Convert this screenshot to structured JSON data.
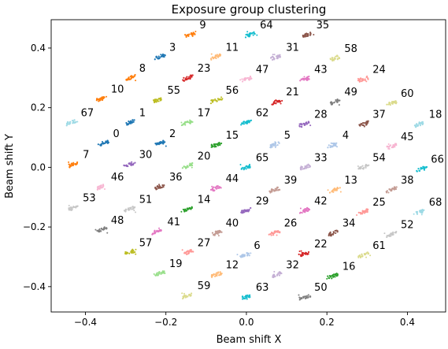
{
  "chart_data": {
    "type": "scatter",
    "title": "Exposure group clustering",
    "xlabel": "Beam shift X",
    "ylabel": "Beam shift Y",
    "xlim": [
      -0.485,
      0.495
    ],
    "ylim": [
      -0.485,
      0.495
    ],
    "xticks": [
      -0.4,
      -0.2,
      0.0,
      0.2,
      0.4
    ],
    "yticks": [
      -0.4,
      -0.2,
      0.0,
      0.2,
      0.4
    ],
    "grid": false,
    "legend": "none",
    "palette": [
      "#1f77b4",
      "#aec7e8",
      "#ff7f0e",
      "#ffbb78",
      "#2ca02c",
      "#98df8a",
      "#d62728",
      "#ff9896",
      "#9467bd",
      "#c5b0d5",
      "#8c564b",
      "#c49c94",
      "#e377c2",
      "#f7b6d2",
      "#7f7f7f",
      "#c7c7c7",
      "#bcbd22",
      "#dbdb8d",
      "#17becf",
      "#9edae5"
    ],
    "clusters": [
      {
        "label": "0",
        "x": -0.355,
        "y": 0.08,
        "color": "#1f77b4"
      },
      {
        "label": "1",
        "x": -0.29,
        "y": 0.15,
        "color": "#1f77b4"
      },
      {
        "label": "2",
        "x": -0.215,
        "y": 0.08,
        "color": "#1f77b4"
      },
      {
        "label": "3",
        "x": -0.215,
        "y": 0.37,
        "color": "#1f77b4"
      },
      {
        "label": "4",
        "x": 0.215,
        "y": 0.075,
        "color": "#aec7e8"
      },
      {
        "label": "5",
        "x": 0.07,
        "y": 0.075,
        "color": "#aec7e8"
      },
      {
        "label": "6",
        "x": -0.005,
        "y": -0.295,
        "color": "#aec7e8"
      },
      {
        "label": "7",
        "x": -0.43,
        "y": 0.01,
        "color": "#ff7f0e"
      },
      {
        "label": "8",
        "x": -0.29,
        "y": 0.3,
        "color": "#ff7f0e"
      },
      {
        "label": "9",
        "x": -0.14,
        "y": 0.445,
        "color": "#ff7f0e"
      },
      {
        "label": "10",
        "x": -0.36,
        "y": 0.23,
        "color": "#ff7f0e"
      },
      {
        "label": "11",
        "x": -0.075,
        "y": 0.37,
        "color": "#ffbb78"
      },
      {
        "label": "12",
        "x": -0.075,
        "y": -0.36,
        "color": "#ffbb78"
      },
      {
        "label": "13",
        "x": 0.22,
        "y": -0.075,
        "color": "#ffbb78"
      },
      {
        "label": "14",
        "x": -0.145,
        "y": -0.14,
        "color": "#2ca02c"
      },
      {
        "label": "15",
        "x": -0.075,
        "y": 0.075,
        "color": "#2ca02c"
      },
      {
        "label": "16",
        "x": 0.215,
        "y": -0.365,
        "color": "#2ca02c"
      },
      {
        "label": "17",
        "x": -0.145,
        "y": 0.15,
        "color": "#98df8a"
      },
      {
        "label": "19",
        "x": -0.215,
        "y": -0.355,
        "color": "#98df8a"
      },
      {
        "label": "20",
        "x": -0.145,
        "y": 0.005,
        "color": "#98df8a"
      },
      {
        "label": "21",
        "x": 0.075,
        "y": 0.22,
        "color": "#d62728"
      },
      {
        "label": "22",
        "x": 0.145,
        "y": -0.29,
        "color": "#d62728"
      },
      {
        "label": "23",
        "x": -0.145,
        "y": 0.3,
        "color": "#d62728"
      },
      {
        "label": "24",
        "x": 0.29,
        "y": 0.295,
        "color": "#ff9896"
      },
      {
        "label": "25",
        "x": 0.29,
        "y": -0.15,
        "color": "#ff9896"
      },
      {
        "label": "26",
        "x": 0.07,
        "y": -0.22,
        "color": "#ff9896"
      },
      {
        "label": "27",
        "x": -0.145,
        "y": -0.285,
        "color": "#ff9896"
      },
      {
        "label": "28",
        "x": 0.145,
        "y": 0.145,
        "color": "#9467bd"
      },
      {
        "label": "29",
        "x": 0.0,
        "y": -0.145,
        "color": "#9467bd"
      },
      {
        "label": "30",
        "x": -0.29,
        "y": 0.01,
        "color": "#9467bd"
      },
      {
        "label": "31",
        "x": 0.075,
        "y": 0.37,
        "color": "#c5b0d5"
      },
      {
        "label": "32",
        "x": 0.075,
        "y": -0.36,
        "color": "#c5b0d5"
      },
      {
        "label": "33",
        "x": 0.145,
        "y": 0.0,
        "color": "#c5b0d5"
      },
      {
        "label": "34",
        "x": 0.215,
        "y": -0.22,
        "color": "#8c564b"
      },
      {
        "label": "35",
        "x": 0.15,
        "y": 0.445,
        "color": "#8c564b"
      },
      {
        "label": "36",
        "x": -0.215,
        "y": -0.065,
        "color": "#8c564b"
      },
      {
        "label": "37",
        "x": 0.29,
        "y": 0.145,
        "color": "#8c564b"
      },
      {
        "label": "38",
        "x": 0.36,
        "y": -0.075,
        "color": "#c49c94"
      },
      {
        "label": "39",
        "x": 0.07,
        "y": -0.075,
        "color": "#c49c94"
      },
      {
        "label": "40",
        "x": -0.075,
        "y": -0.22,
        "color": "#c49c94"
      },
      {
        "label": "41",
        "x": -0.22,
        "y": -0.215,
        "color": "#e377c2"
      },
      {
        "label": "42",
        "x": 0.145,
        "y": -0.145,
        "color": "#e377c2"
      },
      {
        "label": "43",
        "x": 0.145,
        "y": 0.295,
        "color": "#e377c2"
      },
      {
        "label": "44",
        "x": -0.075,
        "y": -0.07,
        "color": "#e377c2"
      },
      {
        "label": "45",
        "x": 0.36,
        "y": 0.07,
        "color": "#f7b6d2"
      },
      {
        "label": "46",
        "x": -0.36,
        "y": -0.065,
        "color": "#f7b6d2"
      },
      {
        "label": "47",
        "x": 0.0,
        "y": 0.295,
        "color": "#f7b6d2"
      },
      {
        "label": "48",
        "x": -0.36,
        "y": -0.21,
        "color": "#7f7f7f"
      },
      {
        "label": "49",
        "x": 0.22,
        "y": 0.22,
        "color": "#7f7f7f"
      },
      {
        "label": "50",
        "x": 0.145,
        "y": -0.435,
        "color": "#7f7f7f"
      },
      {
        "label": "51",
        "x": -0.29,
        "y": -0.14,
        "color": "#c7c7c7"
      },
      {
        "label": "52",
        "x": 0.36,
        "y": -0.225,
        "color": "#c7c7c7"
      },
      {
        "label": "53",
        "x": -0.43,
        "y": -0.135,
        "color": "#c7c7c7"
      },
      {
        "label": "54",
        "x": 0.29,
        "y": 0.0,
        "color": "#c7c7c7"
      },
      {
        "label": "55",
        "x": -0.22,
        "y": 0.225,
        "color": "#bcbd22"
      },
      {
        "label": "56",
        "x": -0.075,
        "y": 0.225,
        "color": "#bcbd22"
      },
      {
        "label": "57",
        "x": -0.29,
        "y": -0.285,
        "color": "#bcbd22"
      },
      {
        "label": "58",
        "x": 0.22,
        "y": 0.365,
        "color": "#dbdb8d"
      },
      {
        "label": "59",
        "x": -0.145,
        "y": -0.43,
        "color": "#dbdb8d"
      },
      {
        "label": "60",
        "x": 0.36,
        "y": 0.215,
        "color": "#dbdb8d"
      },
      {
        "label": "61",
        "x": 0.29,
        "y": -0.295,
        "color": "#dbdb8d"
      },
      {
        "label": "62",
        "x": 0.0,
        "y": 0.15,
        "color": "#17becf"
      },
      {
        "label": "63",
        "x": 0.0,
        "y": -0.435,
        "color": "#17becf"
      },
      {
        "label": "64",
        "x": 0.01,
        "y": 0.445,
        "color": "#17becf"
      },
      {
        "label": "65",
        "x": 0.0,
        "y": 0.0,
        "color": "#17becf"
      },
      {
        "label": "66",
        "x": 0.435,
        "y": -0.005,
        "color": "#17becf"
      },
      {
        "label": "67",
        "x": -0.435,
        "y": 0.15,
        "color": "#9edae5"
      },
      {
        "label": "68",
        "x": 0.43,
        "y": -0.15,
        "color": "#9edae5"
      },
      {
        "label": "18",
        "x": 0.43,
        "y": 0.145,
        "color": "#9edae5"
      }
    ]
  }
}
